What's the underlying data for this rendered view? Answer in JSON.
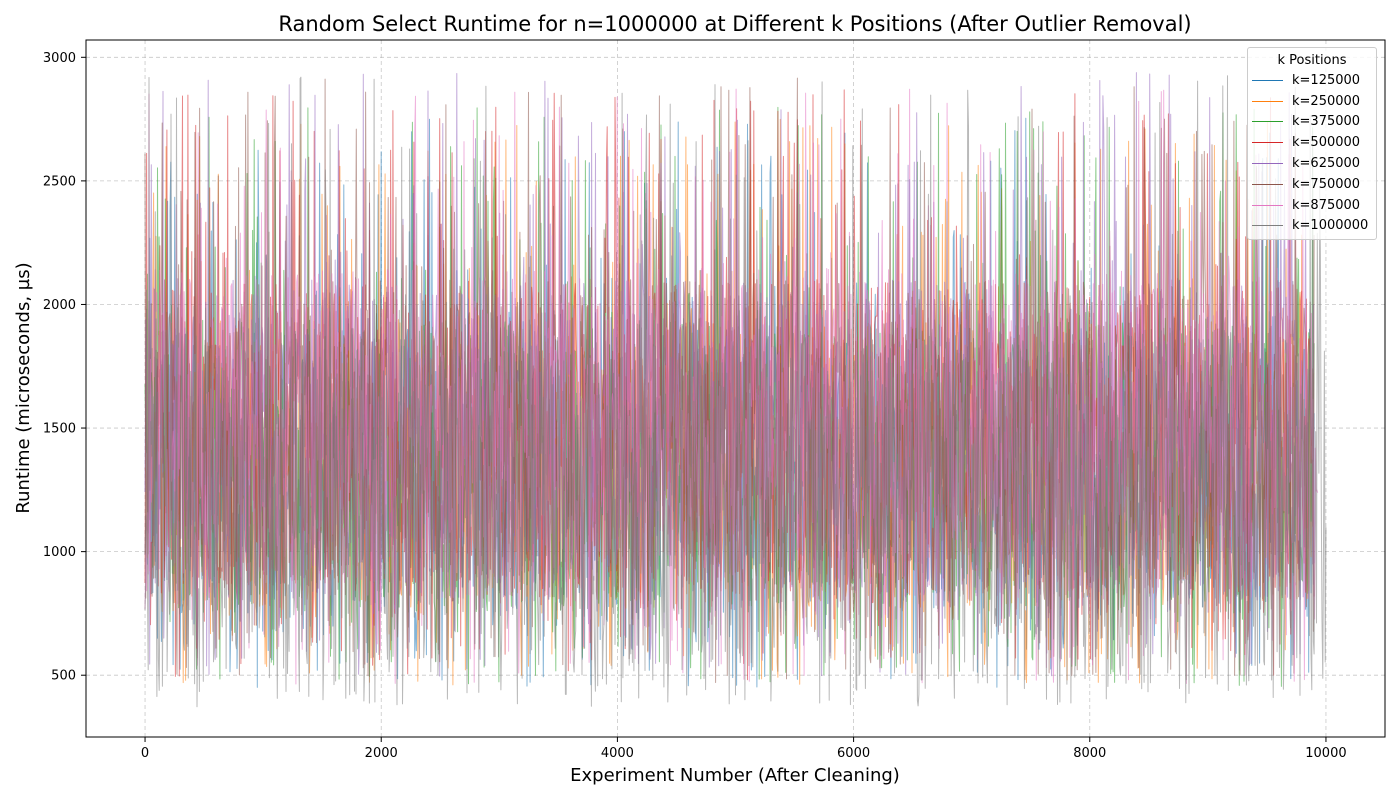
{
  "chart_data": {
    "type": "line",
    "title": "Random Select Runtime for n=1000000 at Different k Positions (After Outlier Removal)",
    "xlabel": "Experiment Number (After Cleaning)",
    "ylabel": "Runtime (microseconds, µs)",
    "xlim": [
      -500,
      10500
    ],
    "ylim": [
      250,
      3070
    ],
    "x_ticks": [
      0,
      2000,
      4000,
      6000,
      8000,
      10000
    ],
    "x_tick_labels": [
      "0",
      "2000",
      "4000",
      "6000",
      "8000",
      "10000"
    ],
    "y_ticks": [
      500,
      1000,
      1500,
      2000,
      2500,
      3000
    ],
    "y_tick_labels": [
      "500",
      "1000",
      "1500",
      "2000",
      "2500",
      "3000"
    ],
    "grid": true,
    "legend": {
      "title": "k Positions",
      "placement": "top-right"
    },
    "x_range": [
      0,
      10000
    ],
    "series": [
      {
        "name": "k=125000",
        "color": "#1f77b4",
        "x_end": 9900,
        "min": 450,
        "max": 2760,
        "typical_low": 750,
        "typical_high": 1900
      },
      {
        "name": "k=250000",
        "color": "#ff7f0e",
        "x_end": 9900,
        "min": 460,
        "max": 2780,
        "typical_low": 750,
        "typical_high": 1950
      },
      {
        "name": "k=375000",
        "color": "#2ca02c",
        "x_end": 9900,
        "min": 450,
        "max": 2800,
        "typical_low": 750,
        "typical_high": 1950
      },
      {
        "name": "k=500000",
        "color": "#d62728",
        "x_end": 9900,
        "min": 480,
        "max": 2870,
        "typical_low": 800,
        "typical_high": 2100
      },
      {
        "name": "k=625000",
        "color": "#9467bd",
        "x_end": 9900,
        "min": 480,
        "max": 2940,
        "typical_low": 800,
        "typical_high": 2100
      },
      {
        "name": "k=750000",
        "color": "#8c564b",
        "x_end": 9900,
        "min": 470,
        "max": 2920,
        "typical_low": 800,
        "typical_high": 2100
      },
      {
        "name": "k=875000",
        "color": "#e377c2",
        "x_end": 9930,
        "min": 460,
        "max": 2880,
        "typical_low": 800,
        "typical_high": 2150
      },
      {
        "name": "k=1000000",
        "color": "#7f7f7f",
        "x_end": 10000,
        "min": 370,
        "max": 2930,
        "typical_low": 500,
        "typical_high": 1900
      }
    ]
  }
}
